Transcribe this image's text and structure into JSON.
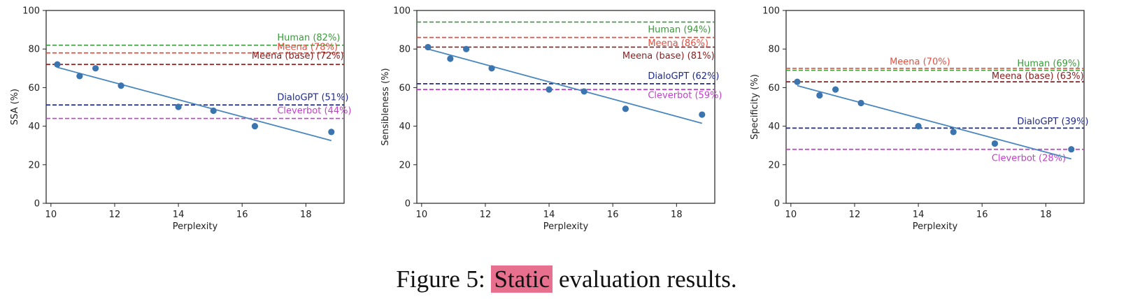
{
  "caption": {
    "prefix": "Figure 5:",
    "highlight": "Static",
    "suffix": "evaluation results."
  },
  "chart_data": [
    {
      "type": "scatter",
      "xlabel": "Perplexity",
      "ylabel": "SSA (%)",
      "xlim": [
        9.85,
        19.2
      ],
      "ylim": [
        0,
        100
      ],
      "xticks": [
        10,
        12,
        14,
        16,
        18
      ],
      "yticks": [
        0,
        20,
        40,
        60,
        80,
        100
      ],
      "points": {
        "x": [
          10.2,
          10.9,
          11.4,
          12.2,
          14.0,
          15.1,
          16.4,
          18.8
        ],
        "y": [
          72,
          66,
          70,
          61,
          50,
          48,
          40,
          37
        ]
      },
      "fit": {
        "x": [
          10.2,
          18.8
        ],
        "y": [
          70.5,
          32.5
        ]
      },
      "references": [
        {
          "label": "Human (82%)",
          "value": 82,
          "color": "#3a9a3a",
          "label_x": 17.1,
          "label_y": 84.5
        },
        {
          "label": "Meena (78%)",
          "value": 78,
          "color": "#e84d3f",
          "label_x": 17.1,
          "label_y": 79.5
        },
        {
          "label": "Meena (base) (72%)",
          "value": 72,
          "color": "#8b2020",
          "label_x": 16.3,
          "label_y": 75
        },
        {
          "label": "DialoGPT (51%)",
          "value": 51,
          "color": "#1f2a8f",
          "label_x": 17.1,
          "label_y": 53.5
        },
        {
          "label": "Cleverbot (44%)",
          "value": 44,
          "color": "#c43fcf",
          "label_x": 17.1,
          "label_y": 46.5
        }
      ]
    },
    {
      "type": "scatter",
      "xlabel": "Perplexity",
      "ylabel": "Sensibleness (%)",
      "xlim": [
        9.85,
        19.2
      ],
      "ylim": [
        0,
        100
      ],
      "xticks": [
        10,
        12,
        14,
        16,
        18
      ],
      "yticks": [
        0,
        20,
        40,
        60,
        80,
        100
      ],
      "points": {
        "x": [
          10.2,
          10.9,
          11.4,
          12.2,
          14.0,
          15.1,
          16.4,
          18.8
        ],
        "y": [
          81,
          75,
          80,
          70,
          59,
          58,
          49,
          46
        ]
      },
      "fit": {
        "x": [
          10.2,
          18.8
        ],
        "y": [
          80,
          41.5
        ]
      },
      "references": [
        {
          "label": "Human (94%)",
          "value": 94,
          "color": "#3a9a3a",
          "label_x": 17.1,
          "label_y": 88.5
        },
        {
          "label": "Meena (86%)",
          "value": 86,
          "color": "#e84d3f",
          "label_x": 17.1,
          "label_y": 81.5
        },
        {
          "label": "Meena (base) (81%)",
          "value": 81,
          "color": "#8b2020",
          "label_x": 16.3,
          "label_y": 75
        },
        {
          "label": "DialoGPT (62%)",
          "value": 62,
          "color": "#1f2a8f",
          "label_x": 17.1,
          "label_y": 64.5
        },
        {
          "label": "Cleverbot (59%)",
          "value": 59,
          "color": "#c43fcf",
          "label_x": 17.1,
          "label_y": 54.5
        }
      ]
    },
    {
      "type": "scatter",
      "xlabel": "Perplexity",
      "ylabel": "Specificity (%)",
      "xlim": [
        9.85,
        19.2
      ],
      "ylim": [
        0,
        100
      ],
      "xticks": [
        10,
        12,
        14,
        16,
        18
      ],
      "yticks": [
        0,
        20,
        40,
        60,
        80,
        100
      ],
      "points": {
        "x": [
          10.2,
          10.9,
          11.4,
          12.2,
          14.0,
          15.1,
          16.4,
          18.8
        ],
        "y": [
          63,
          56,
          59,
          52,
          40,
          37,
          31,
          28
        ]
      },
      "fit": {
        "x": [
          10.2,
          18.8
        ],
        "y": [
          61,
          23
        ]
      },
      "references": [
        {
          "label": "Meena (70%)",
          "value": 70,
          "color": "#e84d3f",
          "label_x": 13.1,
          "label_y": 72
        },
        {
          "label": "Human (69%)",
          "value": 69,
          "color": "#3a9a3a",
          "label_x": 17.1,
          "label_y": 71
        },
        {
          "label": "Meena (base) (63%)",
          "value": 63,
          "color": "#8b2020",
          "label_x": 16.3,
          "label_y": 64.5
        },
        {
          "label": "DialoGPT (39%)",
          "value": 39,
          "color": "#1f2a8f",
          "label_x": 17.1,
          "label_y": 41
        },
        {
          "label": "Cleverbot (28%)",
          "value": 28,
          "color": "#c43fcf",
          "label_x": 16.3,
          "label_y": 22
        }
      ]
    }
  ],
  "colors": {
    "point": "#3a75b0",
    "fit": "#4a87c0",
    "axis": "#222222"
  }
}
